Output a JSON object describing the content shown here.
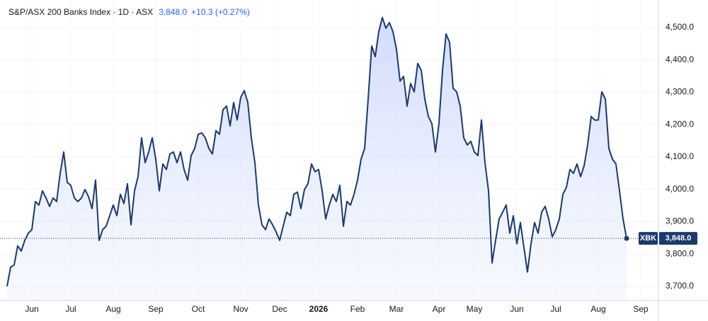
{
  "chart_data": {
    "type": "area",
    "title": "S&P/ASX 200 Banks Index · 1D · ASX",
    "price": "3,848.0",
    "change": "+10.3 (+0.27%)",
    "symbol": "XBK",
    "color": "#1c3a6b",
    "grid": true,
    "categories": [
      null,
      null,
      null,
      null,
      null,
      null,
      null,
      "Jun",
      null,
      null,
      null,
      null,
      null,
      null,
      null,
      null,
      null,
      null,
      "Jul",
      null,
      null,
      null,
      null,
      null,
      null,
      null,
      null,
      null,
      null,
      null,
      "Aug",
      null,
      null,
      null,
      null,
      null,
      null,
      null,
      null,
      null,
      null,
      null,
      "Sep",
      null,
      null,
      null,
      null,
      null,
      null,
      null,
      null,
      null,
      null,
      null,
      "Oct",
      null,
      null,
      null,
      null,
      null,
      null,
      null,
      null,
      null,
      null,
      null,
      "Nov",
      null,
      null,
      null,
      null,
      null,
      null,
      null,
      null,
      null,
      null,
      "Dec",
      null,
      null,
      null,
      null,
      null,
      null,
      null,
      null,
      null,
      null,
      "2026",
      null,
      null,
      null,
      null,
      null,
      null,
      null,
      null,
      null,
      null,
      "Feb",
      null,
      null,
      null,
      null,
      null,
      null,
      null,
      null,
      null,
      null,
      "Mar",
      null,
      null,
      null,
      null,
      null,
      null,
      null,
      null,
      null,
      null,
      null,
      "Apr",
      null,
      null,
      null,
      null,
      null,
      null,
      null,
      null,
      null,
      "May",
      null,
      null,
      null,
      null,
      null,
      null,
      null,
      null,
      null,
      null,
      null,
      "Jun",
      null,
      null,
      null,
      null,
      null,
      null,
      null,
      null,
      null,
      null,
      "Jul",
      null,
      null,
      null,
      null,
      null,
      null,
      null,
      null,
      null,
      null,
      null,
      "Aug",
      null,
      null,
      null,
      null,
      null,
      null,
      null,
      null,
      null,
      null,
      null,
      "Sep"
    ],
    "values": [
      3700,
      3759,
      3766,
      3825,
      3809,
      3842,
      3864,
      3875,
      3962,
      3951,
      3995,
      3973,
      3947,
      3973,
      3962,
      4049,
      4115,
      4021,
      4012,
      3973,
      3962,
      3973,
      3999,
      3977,
      3940,
      4028,
      3842,
      3875,
      3886,
      3918,
      3951,
      3918,
      3984,
      3956,
      4017,
      3890,
      3995,
      4039,
      4159,
      4082,
      4115,
      4159,
      4093,
      3995,
      4078,
      4061,
      4109,
      4115,
      4082,
      4115,
      4061,
      4028,
      4104,
      4126,
      4170,
      4174,
      4159,
      4126,
      4109,
      4181,
      4170,
      4246,
      4257,
      4196,
      4268,
      4214,
      4284,
      4305,
      4268,
      4159,
      4082,
      3951,
      3890,
      3875,
      3908,
      3890,
      3868,
      3842,
      3886,
      3929,
      3918,
      3984,
      3991,
      3940,
      3999,
      4017,
      4078,
      4054,
      4061,
      3995,
      3908,
      3951,
      3984,
      3962,
      4012,
      3886,
      3962,
      3951,
      3984,
      4028,
      4093,
      4126,
      4279,
      4443,
      4410,
      4487,
      4531,
      4498,
      4515,
      4487,
      4432,
      4334,
      4349,
      4257,
      4327,
      4301,
      4389,
      4367,
      4279,
      4225,
      4203,
      4115,
      4203,
      4367,
      4480,
      4454,
      4312,
      4301,
      4257,
      4159,
      4137,
      4148,
      4115,
      4104,
      4214,
      4082,
      3995,
      3772,
      3842,
      3908,
      3929,
      3951,
      3864,
      3918,
      3831,
      3897,
      3820,
      3744,
      3831,
      3897,
      3864,
      3929,
      3947,
      3908,
      3853,
      3875,
      3908,
      3984,
      4006,
      4061,
      4049,
      4078,
      4039,
      4072,
      4137,
      4225,
      4214,
      4214,
      4301,
      4279,
      4126,
      4093,
      4078,
      3995,
      3908,
      3848,
      null,
      null,
      null,
      null
    ],
    "ylim": [
      3656,
      4585
    ],
    "yticks": [
      {
        "value": 3700,
        "label": "3,700.0"
      },
      {
        "value": 3800,
        "label": "3,800.0"
      },
      {
        "value": 3900,
        "label": "3,900.0"
      },
      {
        "value": 4000,
        "label": "4,000.0"
      },
      {
        "value": 4100,
        "label": "4,100.0"
      },
      {
        "value": 4200,
        "label": "4,200.0"
      },
      {
        "value": 4300,
        "label": "4,300.0"
      },
      {
        "value": 4400,
        "label": "4,400.0"
      },
      {
        "value": 4500,
        "label": "4,500.0"
      }
    ]
  }
}
